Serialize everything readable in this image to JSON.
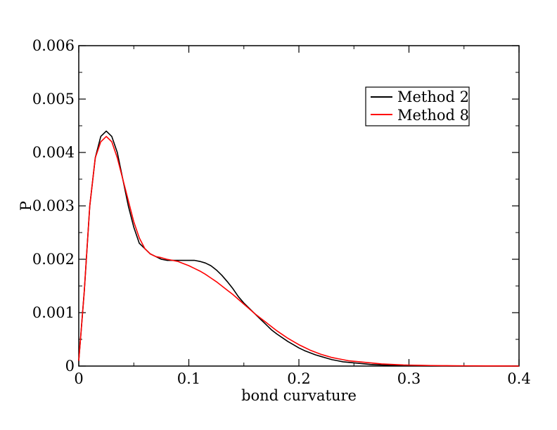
{
  "chart_data": {
    "type": "line",
    "title": "",
    "xlabel": "bond curvature",
    "ylabel": "P",
    "xlim": [
      0,
      0.4
    ],
    "ylim": [
      0,
      0.006
    ],
    "xticks": [
      0,
      0.1,
      0.2,
      0.3,
      0.4
    ],
    "xtick_labels": [
      "0",
      "0.1",
      "0.2",
      "0.3",
      "0.4"
    ],
    "yticks": [
      0,
      0.001,
      0.002,
      0.003,
      0.004,
      0.005,
      0.006
    ],
    "ytick_labels": [
      "0",
      "0.001",
      "0.002",
      "0.003",
      "0.004",
      "0.005",
      "0.006"
    ],
    "grid": false,
    "legend_position": "top-right",
    "x": [
      0,
      0.005,
      0.01,
      0.015,
      0.02,
      0.025,
      0.03,
      0.035,
      0.04,
      0.045,
      0.05,
      0.055,
      0.06,
      0.065,
      0.07,
      0.075,
      0.08,
      0.085,
      0.09,
      0.095,
      0.1,
      0.105,
      0.11,
      0.115,
      0.12,
      0.125,
      0.13,
      0.135,
      0.14,
      0.145,
      0.15,
      0.155,
      0.16,
      0.165,
      0.17,
      0.175,
      0.18,
      0.185,
      0.19,
      0.195,
      0.2,
      0.205,
      0.21,
      0.215,
      0.22,
      0.225,
      0.23,
      0.235,
      0.24,
      0.245,
      0.25,
      0.255,
      0.26,
      0.265,
      0.27,
      0.275,
      0.28,
      0.285,
      0.29,
      0.295,
      0.3,
      0.31,
      0.32,
      0.33,
      0.34,
      0.35,
      0.36,
      0.37,
      0.38,
      0.39,
      0.4
    ],
    "series": [
      {
        "name": "Method 2",
        "color": "#000000",
        "values": [
          0.0001,
          0.0014,
          0.003,
          0.0039,
          0.0043,
          0.0044,
          0.0043,
          0.004,
          0.0035,
          0.003,
          0.0026,
          0.0023,
          0.0022,
          0.0021,
          0.00205,
          0.002,
          0.00198,
          0.00198,
          0.00198,
          0.00198,
          0.00198,
          0.00198,
          0.00196,
          0.00193,
          0.00188,
          0.0018,
          0.0017,
          0.00158,
          0.00145,
          0.0013,
          0.00118,
          0.00108,
          0.00098,
          0.00088,
          0.00078,
          0.00068,
          0.0006,
          0.00053,
          0.00046,
          0.0004,
          0.00034,
          0.00029,
          0.00025,
          0.00021,
          0.00018,
          0.00015,
          0.00012,
          0.0001,
          8e-05,
          7e-05,
          6e-05,
          5e-05,
          4e-05,
          3e-05,
          2.5e-05,
          2e-05,
          1.5e-05,
          1.2e-05,
          1e-05,
          8e-06,
          6e-06,
          4e-06,
          3e-06,
          2e-06,
          1e-06,
          1e-06,
          0,
          0,
          0,
          0,
          0
        ]
      },
      {
        "name": "Method 8",
        "color": "#ff0000",
        "values": [
          0.0001,
          0.0014,
          0.003,
          0.0039,
          0.0042,
          0.0043,
          0.0042,
          0.0039,
          0.0035,
          0.0031,
          0.0027,
          0.0024,
          0.0022,
          0.0021,
          0.00205,
          0.00203,
          0.002,
          0.00198,
          0.00196,
          0.00192,
          0.00188,
          0.00183,
          0.00178,
          0.00172,
          0.00165,
          0.00158,
          0.0015,
          0.00142,
          0.00134,
          0.00125,
          0.00116,
          0.00107,
          0.00098,
          0.0009,
          0.00082,
          0.00074,
          0.00066,
          0.00059,
          0.00052,
          0.00046,
          0.0004,
          0.00035,
          0.0003,
          0.00026,
          0.00022,
          0.00019,
          0.00016,
          0.00014,
          0.00012,
          0.0001,
          9e-05,
          8e-05,
          7e-05,
          6e-05,
          5e-05,
          4e-05,
          3.5e-05,
          3e-05,
          2.5e-05,
          2e-05,
          1.8e-05,
          1.4e-05,
          1e-05,
          8e-06,
          6e-06,
          5e-06,
          4e-06,
          3e-06,
          2e-06,
          1e-06,
          0
        ]
      }
    ]
  }
}
